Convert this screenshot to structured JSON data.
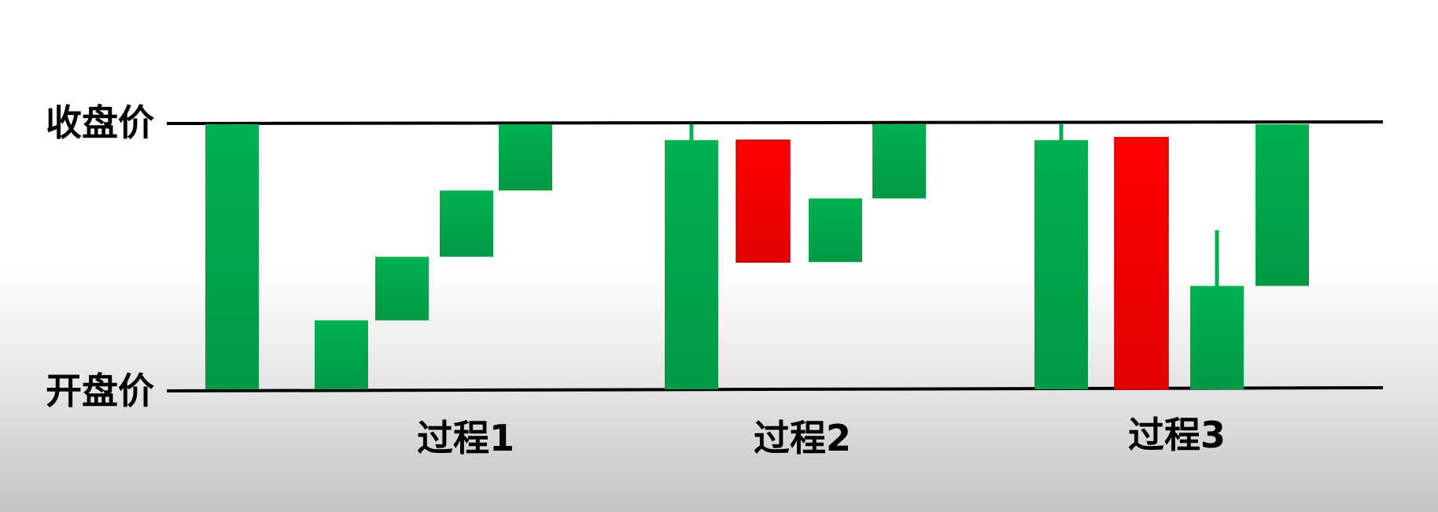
{
  "chart_data": {
    "type": "candlestick-diagram",
    "level_labels": {
      "top": "收盘价",
      "bottom": "开盘价"
    },
    "groups": [
      {
        "label": "过程1",
        "candles": [
          {
            "color": "green",
            "body": [
              0,
              100
            ]
          },
          {
            "color": "green",
            "body": [
              0,
              26
            ]
          },
          {
            "color": "green",
            "body": [
              26,
              50
            ]
          },
          {
            "color": "green",
            "body": [
              50,
              75
            ]
          },
          {
            "color": "green",
            "body": [
              75,
              100
            ]
          }
        ]
      },
      {
        "label": "过程2",
        "candles": [
          {
            "color": "green",
            "body": [
              0,
              94
            ],
            "wick": [
              94,
              100
            ]
          },
          {
            "color": "red",
            "body": [
              48,
              94
            ]
          },
          {
            "color": "green",
            "body": [
              48,
              72
            ]
          },
          {
            "color": "green",
            "body": [
              72,
              100
            ]
          }
        ]
      },
      {
        "label": "过程3",
        "candles": [
          {
            "color": "green",
            "body": [
              0,
              94
            ],
            "wick": [
              94,
              100
            ]
          },
          {
            "color": "red",
            "body": [
              0,
              95
            ]
          },
          {
            "color": "green",
            "body": [
              0,
              39
            ],
            "wick": [
              39,
              60
            ]
          },
          {
            "color": "green",
            "body": [
              39,
              100
            ]
          }
        ]
      }
    ]
  },
  "colors": {
    "green": "#00b050",
    "red": "#ff0000",
    "line": "#000000"
  }
}
